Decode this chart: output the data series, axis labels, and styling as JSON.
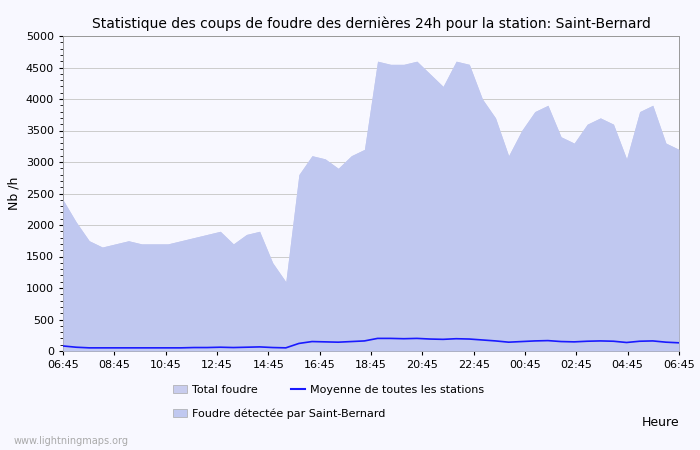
{
  "title": "Statistique des coups de foudre des dernières 24h pour la station: Saint-Bernard",
  "ylabel": "Nb /h",
  "xlabel": "Heure",
  "watermark": "www.lightningmaps.org",
  "x_labels": [
    "06:45",
    "08:45",
    "10:45",
    "12:45",
    "14:45",
    "16:45",
    "18:45",
    "20:45",
    "22:45",
    "00:45",
    "02:45",
    "04:45",
    "06:45"
  ],
  "ylim": [
    0,
    5000
  ],
  "yticks": [
    0,
    500,
    1000,
    1500,
    2000,
    2500,
    3000,
    3500,
    4000,
    4500,
    5000
  ],
  "total_foudre_color": "#c8ccee",
  "station_foudre_color": "#c0c8f0",
  "moyenne_color": "#1a1aff",
  "background_color": "#f8f8ff",
  "grid_color": "#cccccc",
  "legend_total": "Total foudre",
  "legend_station": "Foudre détectée par Saint-Bernard",
  "legend_moyenne": "Moyenne de toutes les stations",
  "total_foudre": [
    2400,
    2050,
    1750,
    1650,
    1700,
    1750,
    1700,
    1700,
    1700,
    1750,
    1800,
    1850,
    1900,
    1700,
    1850,
    1900,
    1400,
    1100,
    2800,
    3100,
    3050,
    2900,
    3100,
    3200,
    4600,
    4550,
    4550,
    4600,
    4400,
    4200,
    4600,
    4550,
    4000,
    3700,
    3100,
    3500,
    3800,
    3900,
    3400,
    3300,
    3600,
    3700,
    3600,
    3050,
    3800,
    3900,
    3300,
    3200
  ],
  "station_foudre": [
    2400,
    2050,
    1750,
    1650,
    1700,
    1750,
    1700,
    1700,
    1700,
    1750,
    1800,
    1850,
    1900,
    1700,
    1850,
    1900,
    1400,
    1100,
    2800,
    3100,
    3050,
    2900,
    3100,
    3200,
    4600,
    4550,
    4550,
    4600,
    4400,
    4200,
    4600,
    4550,
    4000,
    3700,
    3100,
    3500,
    3800,
    3900,
    3400,
    3300,
    3600,
    3700,
    3600,
    3050,
    3800,
    3900,
    3300,
    3200
  ],
  "moyenne": [
    80,
    60,
    50,
    50,
    50,
    50,
    50,
    50,
    50,
    50,
    55,
    55,
    60,
    55,
    60,
    65,
    55,
    50,
    120,
    150,
    145,
    140,
    150,
    160,
    200,
    200,
    195,
    200,
    190,
    185,
    195,
    190,
    175,
    160,
    140,
    150,
    160,
    165,
    150,
    145,
    155,
    160,
    155,
    135,
    155,
    160,
    140,
    130
  ]
}
